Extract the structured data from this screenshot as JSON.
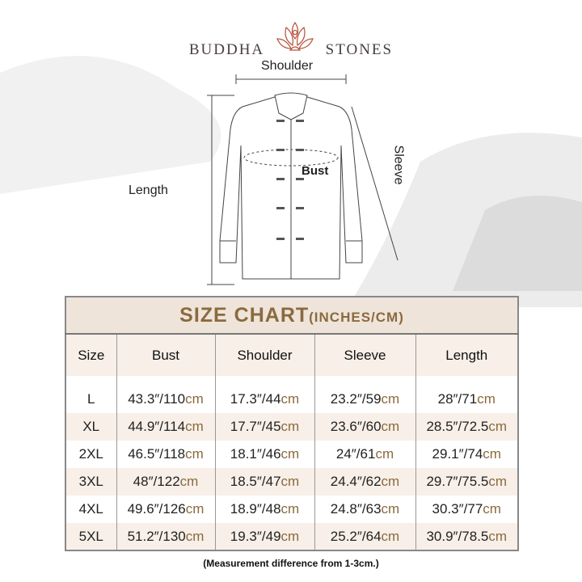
{
  "brand": {
    "left": "BUDDHA",
    "right": "STONES",
    "logo_color": "#b5533a"
  },
  "diagram": {
    "shoulder": "Shoulder",
    "sleeve": "Sleeve",
    "bust": "Bust",
    "length": "Length"
  },
  "table": {
    "title": "SIZE CHART",
    "title_units": "(INCHES/CM)",
    "headers": [
      "Size",
      "Bust",
      "Shoulder",
      "Sleeve",
      "Length"
    ],
    "unit_cm": "cm",
    "rows": [
      {
        "size": "L",
        "bust": "43.3″/110",
        "shoulder": "17.3″/44",
        "sleeve": "23.2″/59",
        "length": "28″/71"
      },
      {
        "size": "XL",
        "bust": "44.9″/114",
        "shoulder": "17.7″/45",
        "sleeve": "23.6″/60",
        "length": "28.5″/72.5"
      },
      {
        "size": "2XL",
        "bust": "46.5″/118",
        "shoulder": "18.1″/46",
        "sleeve": "24″/61",
        "length": "29.1″/74"
      },
      {
        "size": "3XL",
        "bust": "48″/122",
        "shoulder": "18.5″/47",
        "sleeve": "24.4″/62",
        "length": "29.7″/75.5"
      },
      {
        "size": "4XL",
        "bust": "49.6″/126",
        "shoulder": "18.9″/48",
        "sleeve": "24.8″/63",
        "length": "30.3″/77"
      },
      {
        "size": "5XL",
        "bust": "51.2″/130",
        "shoulder": "19.3″/49",
        "sleeve": "25.2″/64",
        "length": "30.9″/78.5"
      }
    ]
  },
  "note": "(Measurement difference from 1-3cm.)",
  "colors": {
    "accent": "#8a6a3e",
    "band": "#efe4da",
    "row_alt": "#f7efe8"
  }
}
